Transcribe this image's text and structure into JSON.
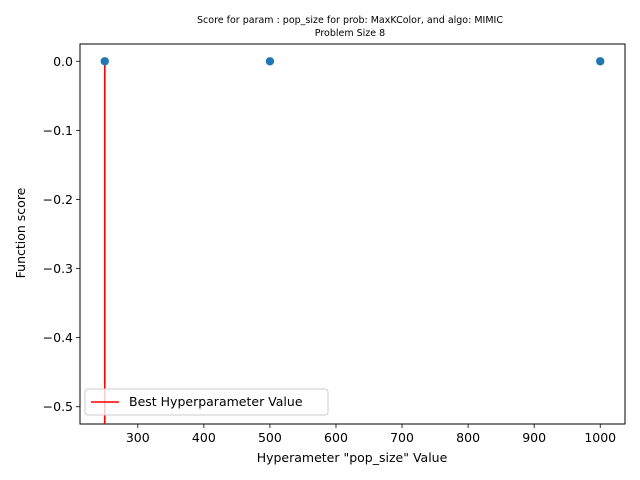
{
  "chart_data": {
    "type": "scatter",
    "title_line1": "Score for param : pop_size for prob: MaxKColor, and algo: MIMIC",
    "title_line2": "Problem Size 8",
    "xlabel": "Hyperameter \"pop_size\" Value",
    "ylabel": "Function score",
    "xlim": [
      212.5,
      1037.5
    ],
    "ylim": [
      -0.525,
      0.025
    ],
    "xticks": [
      300,
      400,
      500,
      600,
      700,
      800,
      900,
      1000
    ],
    "xtick_labels": [
      "300",
      "400",
      "500",
      "600",
      "700",
      "800",
      "900",
      "1000"
    ],
    "yticks": [
      0.0,
      -0.1,
      -0.2,
      -0.3,
      -0.4,
      -0.5
    ],
    "ytick_labels": [
      "0.0",
      "−0.1",
      "−0.2",
      "−0.3",
      "−0.4",
      "−0.5"
    ],
    "points": [
      {
        "x": 250,
        "y": 0.0
      },
      {
        "x": 500,
        "y": 0.0
      },
      {
        "x": 1000,
        "y": 0.0
      }
    ],
    "best_line": {
      "x": 250,
      "y_from": -0.525,
      "y_to": 0.0,
      "name": "Best Hyperparameter Value"
    },
    "legend": {
      "placement": "lower-left",
      "entries": [
        "Best Hyperparameter Value"
      ]
    },
    "grid": false,
    "colors": {
      "points": "#1f77b4",
      "best_line": "#ff0000"
    }
  }
}
